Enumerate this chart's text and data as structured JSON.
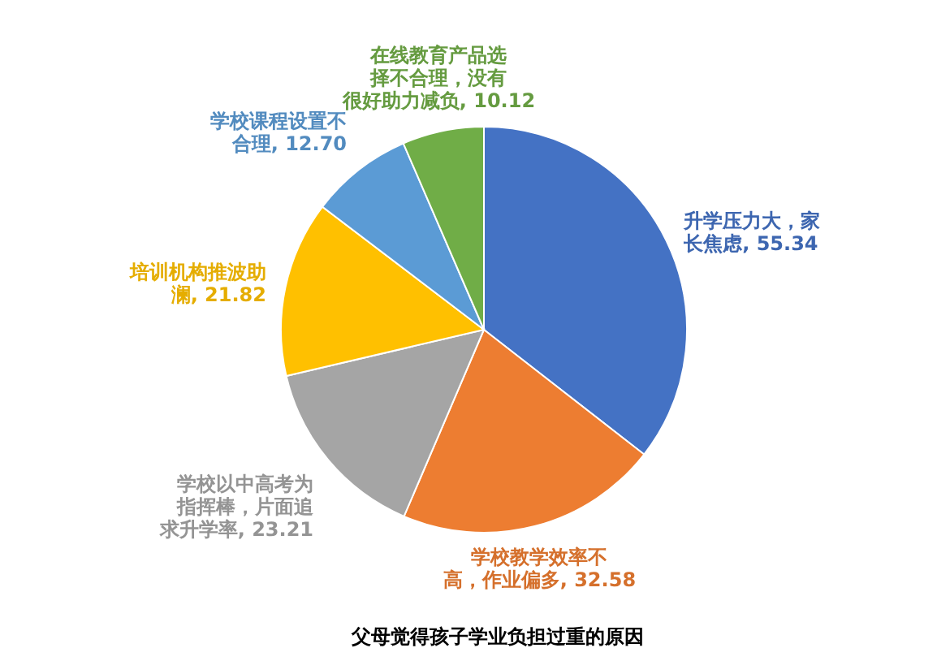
{
  "chart_data": {
    "type": "pie",
    "title": "父母觉得孩子学业负担过重的原因",
    "categories": [
      "升学压力大，家长焦虑",
      "学校教学效率不高，作业偏多",
      "学校以中高考为指挥棒，片面追求升学率",
      "培训机构推波助澜",
      "学校课程设置不合理",
      "在线教育产品选择不合理，没有很好助力减负"
    ],
    "values": [
      55.34,
      32.58,
      23.21,
      21.82,
      12.7,
      10.12
    ],
    "colors": [
      "#4472c4",
      "#ed7d31",
      "#a5a5a5",
      "#ffc000",
      "#5b9bd5",
      "#70ad47"
    ],
    "value_labels": [
      "55.34",
      "32.58",
      "23.21",
      "21.82",
      "12.70",
      "10.12"
    ]
  }
}
